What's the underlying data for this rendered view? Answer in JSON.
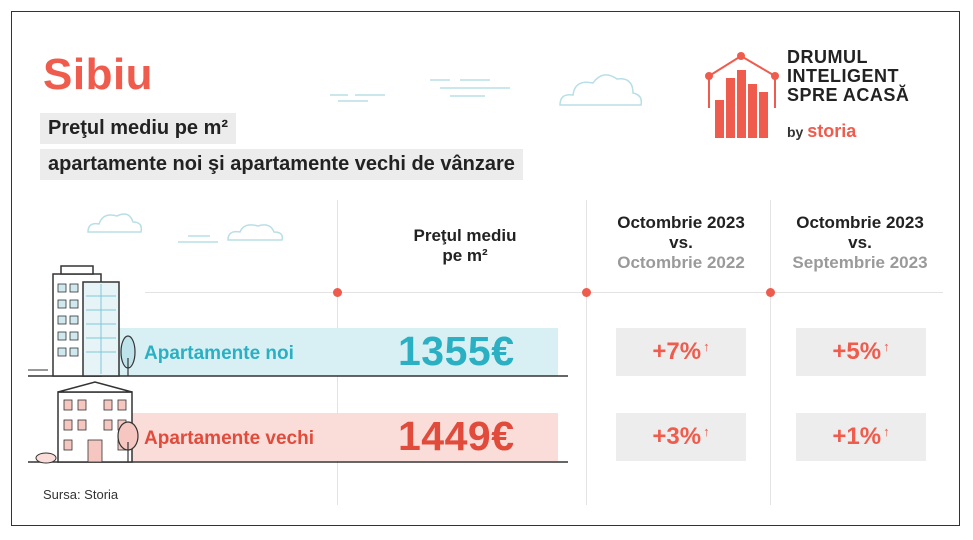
{
  "city": "Sibiu",
  "subtitle": {
    "line1": "Preţul mediu pe m²",
    "line2": "apartamente noi şi apartamente vechi de vânzare"
  },
  "logo": {
    "line1": "DRUMUL",
    "line2": "INTELIGENT",
    "line3": "SPRE ACASĂ",
    "by": "by",
    "brand": "storia",
    "accent": "#ef5b4c"
  },
  "columns": {
    "price": {
      "line1": "Preţul mediu",
      "line2": "pe m²"
    },
    "yoy": {
      "line1": "Octombrie 2023",
      "line2": "vs.",
      "line3": "Octombrie 2022"
    },
    "mom": {
      "line1": "Octombrie 2023",
      "line2": "vs.",
      "line3": "Septembrie 2023"
    }
  },
  "rows": [
    {
      "label": "Apartamente noi",
      "price": "1355€",
      "yoy": "+7%",
      "mom": "+5%",
      "color": "#2bb0c3",
      "band_color": "#d8f0f4"
    },
    {
      "label": "Apartamente vechi",
      "price": "1449€",
      "yoy": "+3%",
      "mom": "+1%",
      "color": "#e14b3c",
      "band_color": "#fadcd8"
    }
  ],
  "arrow_glyph": "↑",
  "source": "Sursa: Storia"
}
